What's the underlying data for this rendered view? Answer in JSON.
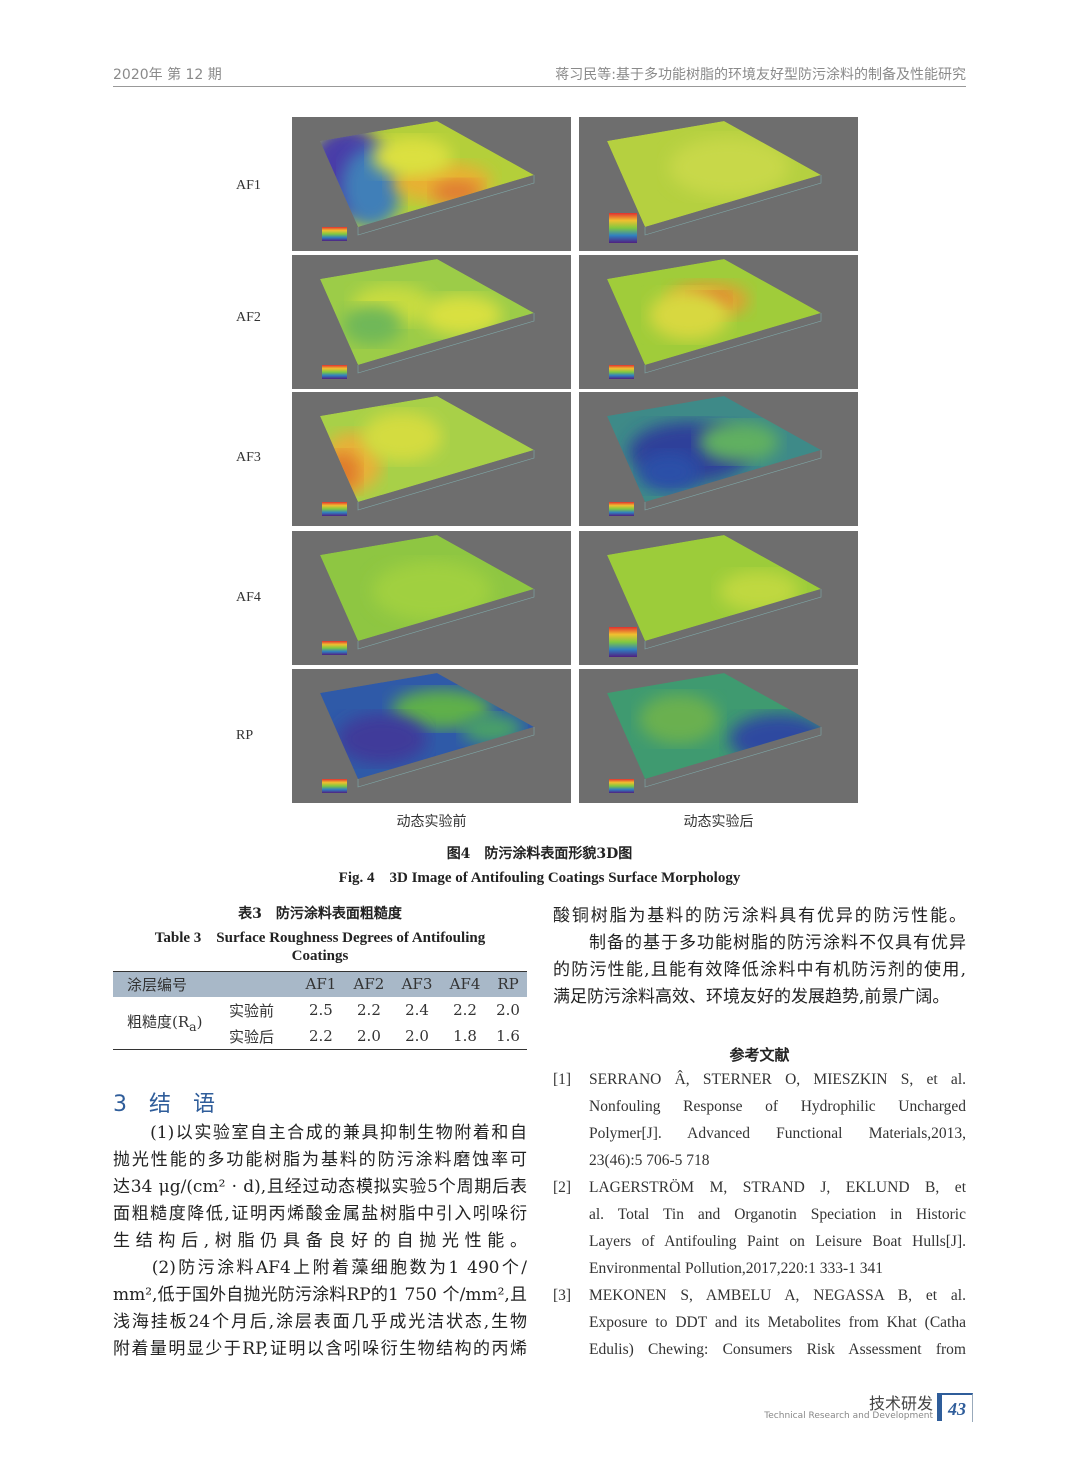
{
  "header": {
    "left": "2020年 第 12 期",
    "right": "蒋习民等:基于多功能树脂的环境友好型防污涂料的制备及性能研究"
  },
  "figure": {
    "row_labels": [
      "AF1",
      "AF2",
      "AF3",
      "AF4",
      "RP"
    ],
    "column_labels": [
      "动态实验前",
      "动态实验后"
    ],
    "caption_cn": "图4　防污涂料表面形貌3D图",
    "caption_en": "Fig. 4　3D Image of Antifouling Coatings Surface Morphology"
  },
  "table": {
    "caption_cn": "表3　防污涂料表面粗糙度",
    "caption_en_1": "Table 3　Surface Roughness Degrees of Antifouling",
    "caption_en_2": "Coatings",
    "header": [
      "涂层编号",
      "AF1",
      "AF2",
      "AF3",
      "AF4",
      "RP"
    ],
    "row_group": "粗糙度(R",
    "row_group_sub": "a",
    "row_group_end": ")",
    "rows": [
      {
        "label": "实验前",
        "values": [
          "2.5",
          "2.2",
          "2.4",
          "2.2",
          "2.0"
        ]
      },
      {
        "label": "实验后",
        "values": [
          "2.2",
          "2.0",
          "2.0",
          "1.8",
          "1.6"
        ]
      }
    ]
  },
  "section": {
    "title": "3　结　语"
  },
  "left_lines": [
    "　　(1)以实验室自主合成的兼具抑制生物附着和自",
    "抛光性能的多功能树脂为基料的防污涂料磨蚀率可",
    "达34 μg/(cm² · d),且经过动态模拟实验5个周期后表",
    "面粗糙度降低,证明丙烯酸金属盐树脂中引入吲哚衍",
    "生结构后,树脂仍具备良好的自抛光性能。",
    "　　(2)防污涂料AF4上附着藻细胞数为1 490个/",
    "mm²,低于国外自抛光防污涂料RP的1 750 个/mm²,且",
    "浅海挂板24个月后,涂层表面几乎成光洁状态,生物",
    "附着量明显少于RP,证明以含吲哚衍生物结构的丙烯"
  ],
  "right_lines": [
    "酸铜树脂为基料的防污涂料具有优异的防污性能。",
    "　　制备的基于多功能树脂的防污涂料不仅具有优异",
    "的防污性能,且能有效降低涂料中有机防污剂的使用,",
    "满足防污涂料高效、环境友好的发展趋势,前景广阔。"
  ],
  "references": {
    "title": "参考文献",
    "items": [
      {
        "num": "[1]",
        "lines": [
          "SERRANO Â, STERNER O, MIESZKIN S, et al.",
          "Nonfouling Response of Hydrophilic Uncharged",
          "Polymer[J]. Advanced Functional Materials,2013,",
          "23(46):5 706-5 718"
        ]
      },
      {
        "num": "[2]",
        "lines": [
          "LAGERSTRÖM M, STRAND J, EKLUND B, et",
          "al. Total Tin and Organotin Speciation in Historic",
          "Layers of Antifouling Paint on Leisure Boat Hulls[J].",
          "Environmental Pollution,2017,220:1 333-1 341"
        ]
      },
      {
        "num": "[3]",
        "lines": [
          "MEKONEN S, AMBELU A, NEGASSA B, et al.",
          "Exposure to DDT and its Metabolites from Khat (Catha",
          "Edulis) Chewing: Consumers Risk Assessment from"
        ]
      }
    ]
  },
  "footer": {
    "section_cn": "技术研发",
    "section_en": "Technical Research and Development",
    "page": "43"
  },
  "colors": {
    "accent": "#2f5d9a",
    "table_header": "#a8b8c8",
    "panel_bg": "#6e6e6e"
  }
}
